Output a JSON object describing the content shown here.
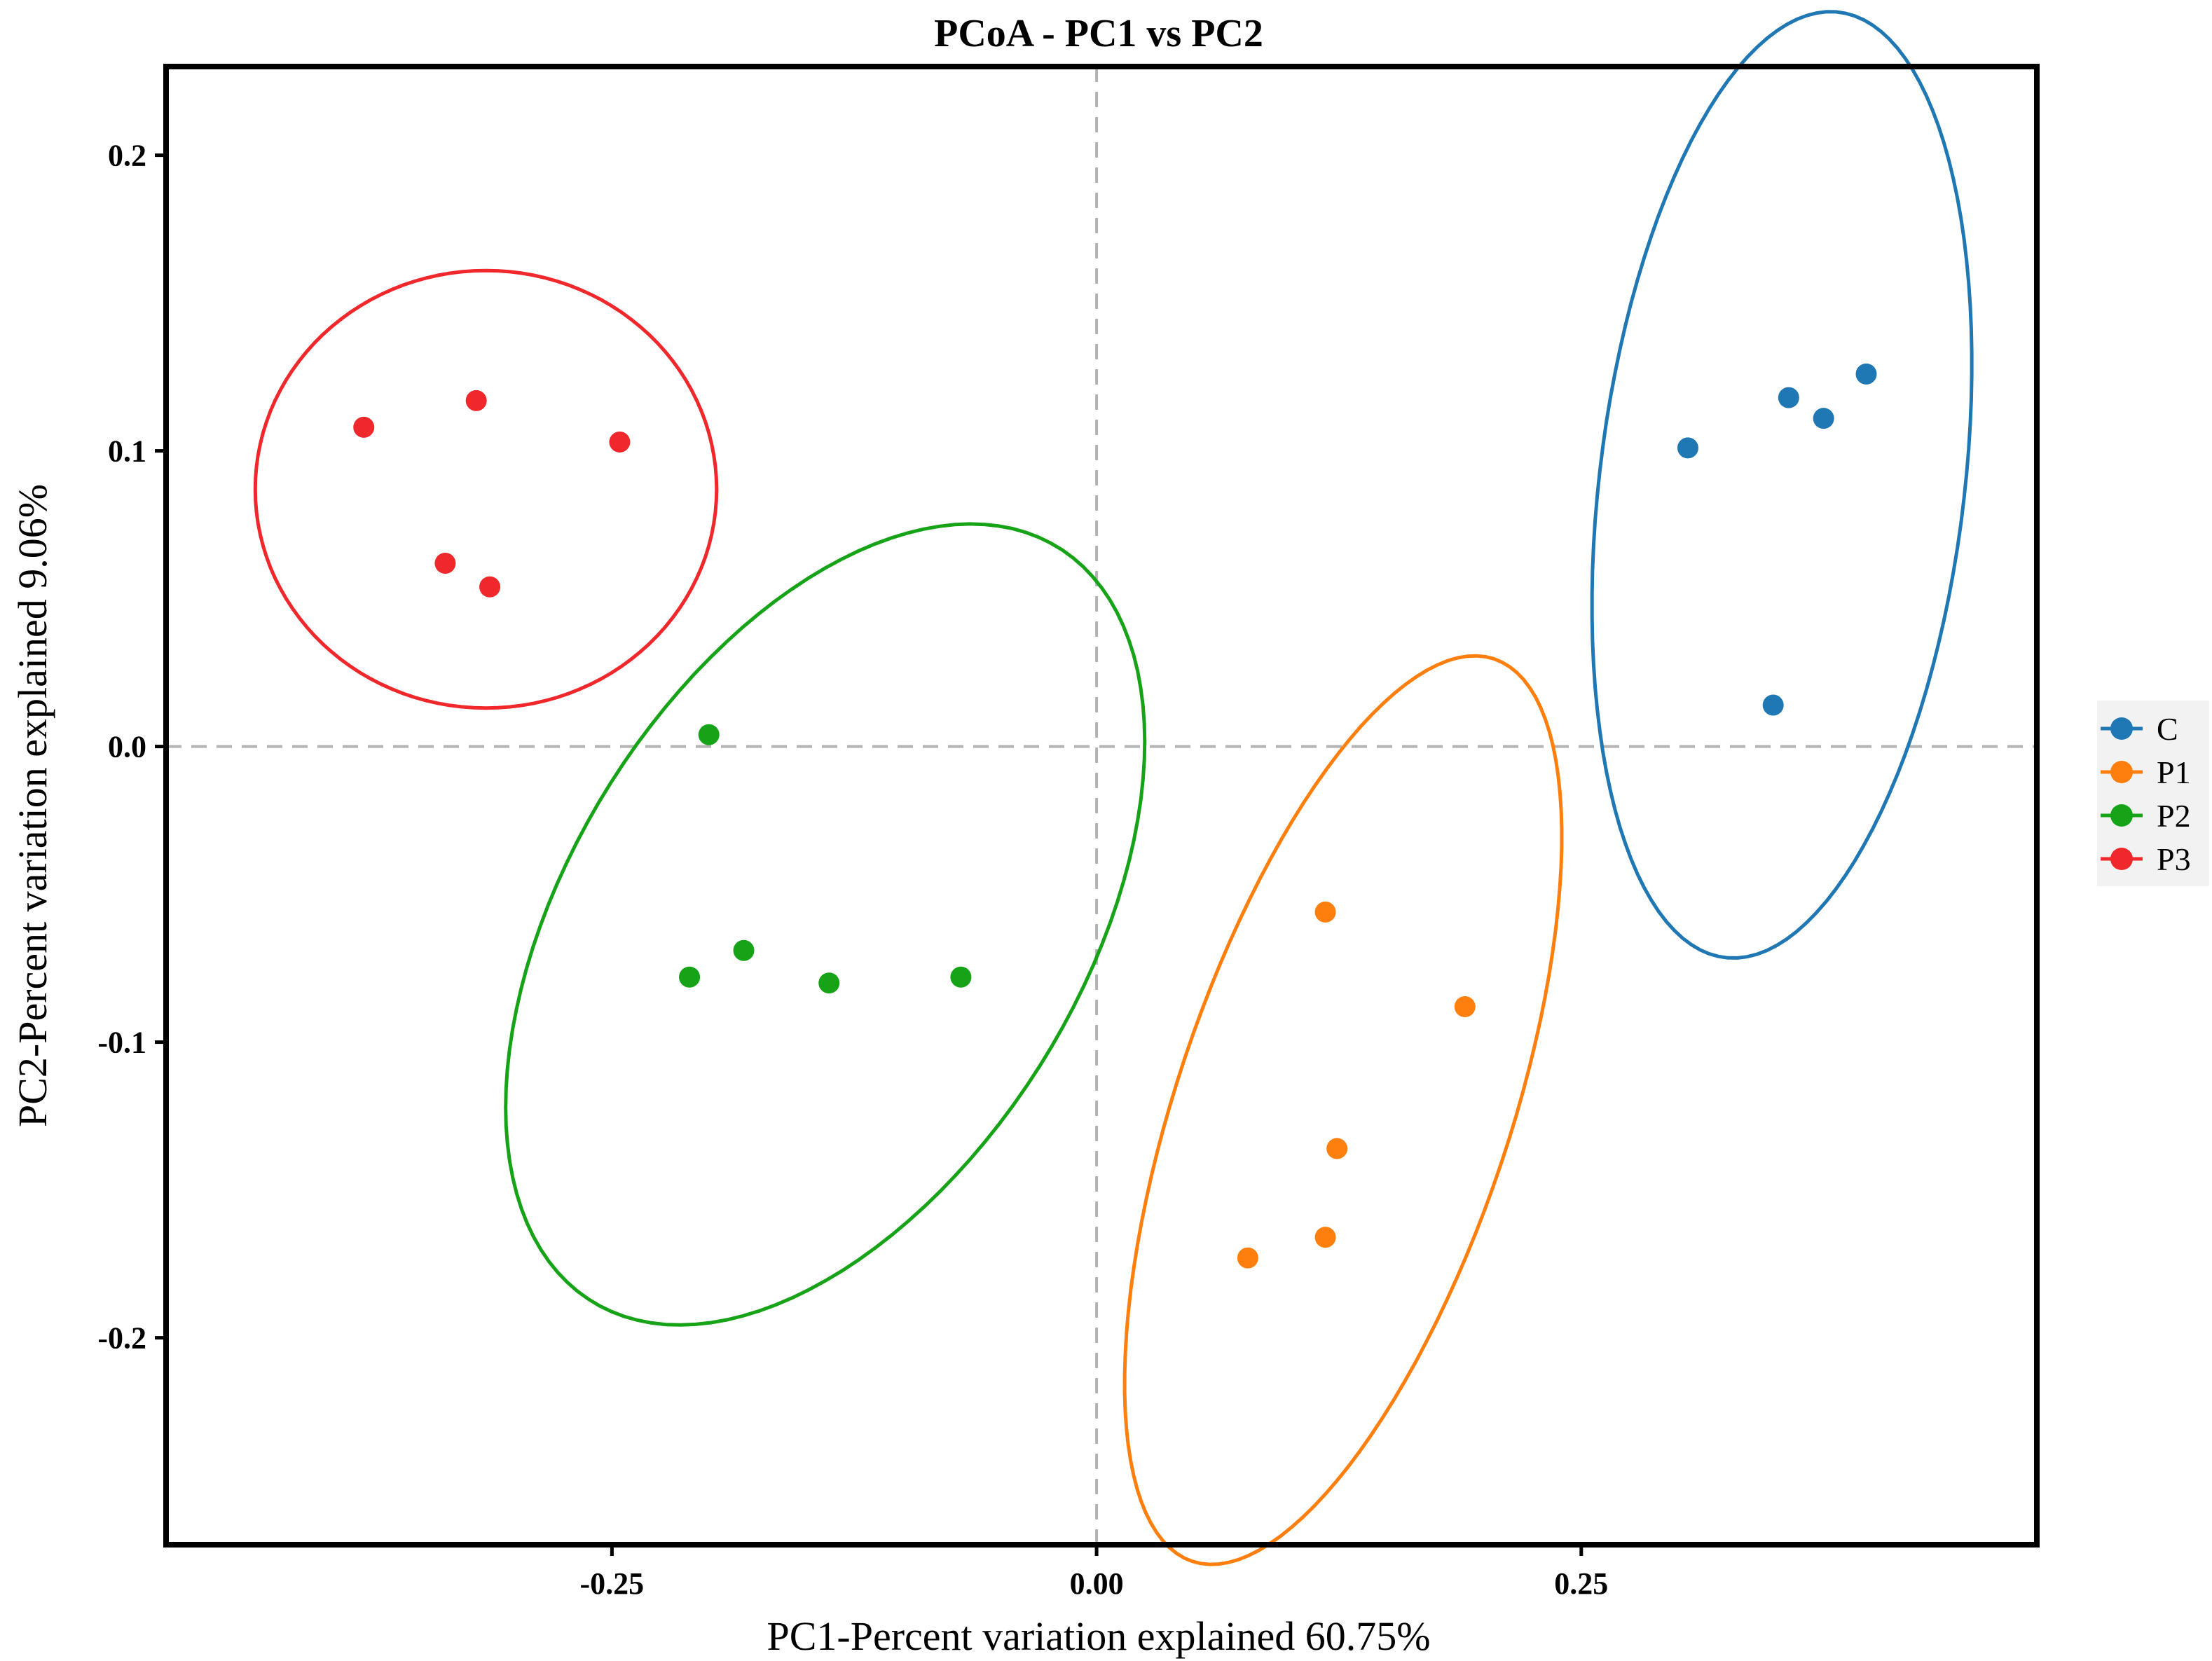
{
  "chart_data": {
    "type": "scatter",
    "title": "PCoA - PC1 vs PC2",
    "xlabel": "PC1-Percent variation explained 60.75%",
    "ylabel": "PC2-Percent variation explained 9.06%",
    "xlim": [
      -0.48,
      0.485
    ],
    "ylim": [
      -0.27,
      0.23
    ],
    "xticks": [
      -0.25,
      0.0,
      0.25
    ],
    "xtick_labels": [
      "-0.25",
      "0.00",
      "0.25"
    ],
    "yticks": [
      0.2,
      0.1,
      0.0,
      -0.1,
      -0.2
    ],
    "ytick_labels": [
      "0.2",
      "0.1",
      "0.0",
      "-0.1",
      "-0.2"
    ],
    "reference_lines": {
      "x": 0.0,
      "y": 0.0,
      "style": "dashed"
    },
    "legend_position": "right",
    "series": [
      {
        "name": "C",
        "color": "#1f77b4",
        "points": [
          [
            0.305,
            0.101
          ],
          [
            0.357,
            0.118
          ],
          [
            0.375,
            0.111
          ],
          [
            0.397,
            0.126
          ],
          [
            0.349,
            0.014
          ]
        ],
        "ellipse": {
          "cx": 0.3535,
          "cy": 0.0885,
          "rx": 0.093,
          "ry": 0.163,
          "angle_deg": -13.3
        }
      },
      {
        "name": "P1",
        "color": "#ff7f0e",
        "points": [
          [
            0.118,
            -0.056
          ],
          [
            0.19,
            -0.088
          ],
          [
            0.124,
            -0.136
          ],
          [
            0.118,
            -0.166
          ],
          [
            0.078,
            -0.173
          ]
        ],
        "ellipse": {
          "cx": 0.1272,
          "cy": -0.123,
          "rx": 0.08,
          "ry": 0.173,
          "angle_deg": -31.2
        }
      },
      {
        "name": "P2",
        "color": "#17a317",
        "points": [
          [
            -0.2,
            0.004
          ],
          [
            -0.182,
            -0.069
          ],
          [
            -0.21,
            -0.078
          ],
          [
            -0.138,
            -0.08
          ],
          [
            -0.07,
            -0.078
          ]
        ],
        "ellipse": {
          "cx": -0.14,
          "cy": -0.0602,
          "rx": 0.108,
          "ry": 0.184,
          "angle_deg": 123.3
        }
      },
      {
        "name": "P3",
        "color": "#f0272b",
        "points": [
          [
            -0.378,
            0.108
          ],
          [
            -0.32,
            0.117
          ],
          [
            -0.246,
            0.103
          ],
          [
            -0.336,
            0.062
          ],
          [
            -0.313,
            0.054
          ]
        ],
        "ellipse": {
          "cx": -0.315,
          "cy": 0.087,
          "rx": 0.119,
          "ry": 0.074,
          "angle_deg": 0
        }
      }
    ]
  }
}
